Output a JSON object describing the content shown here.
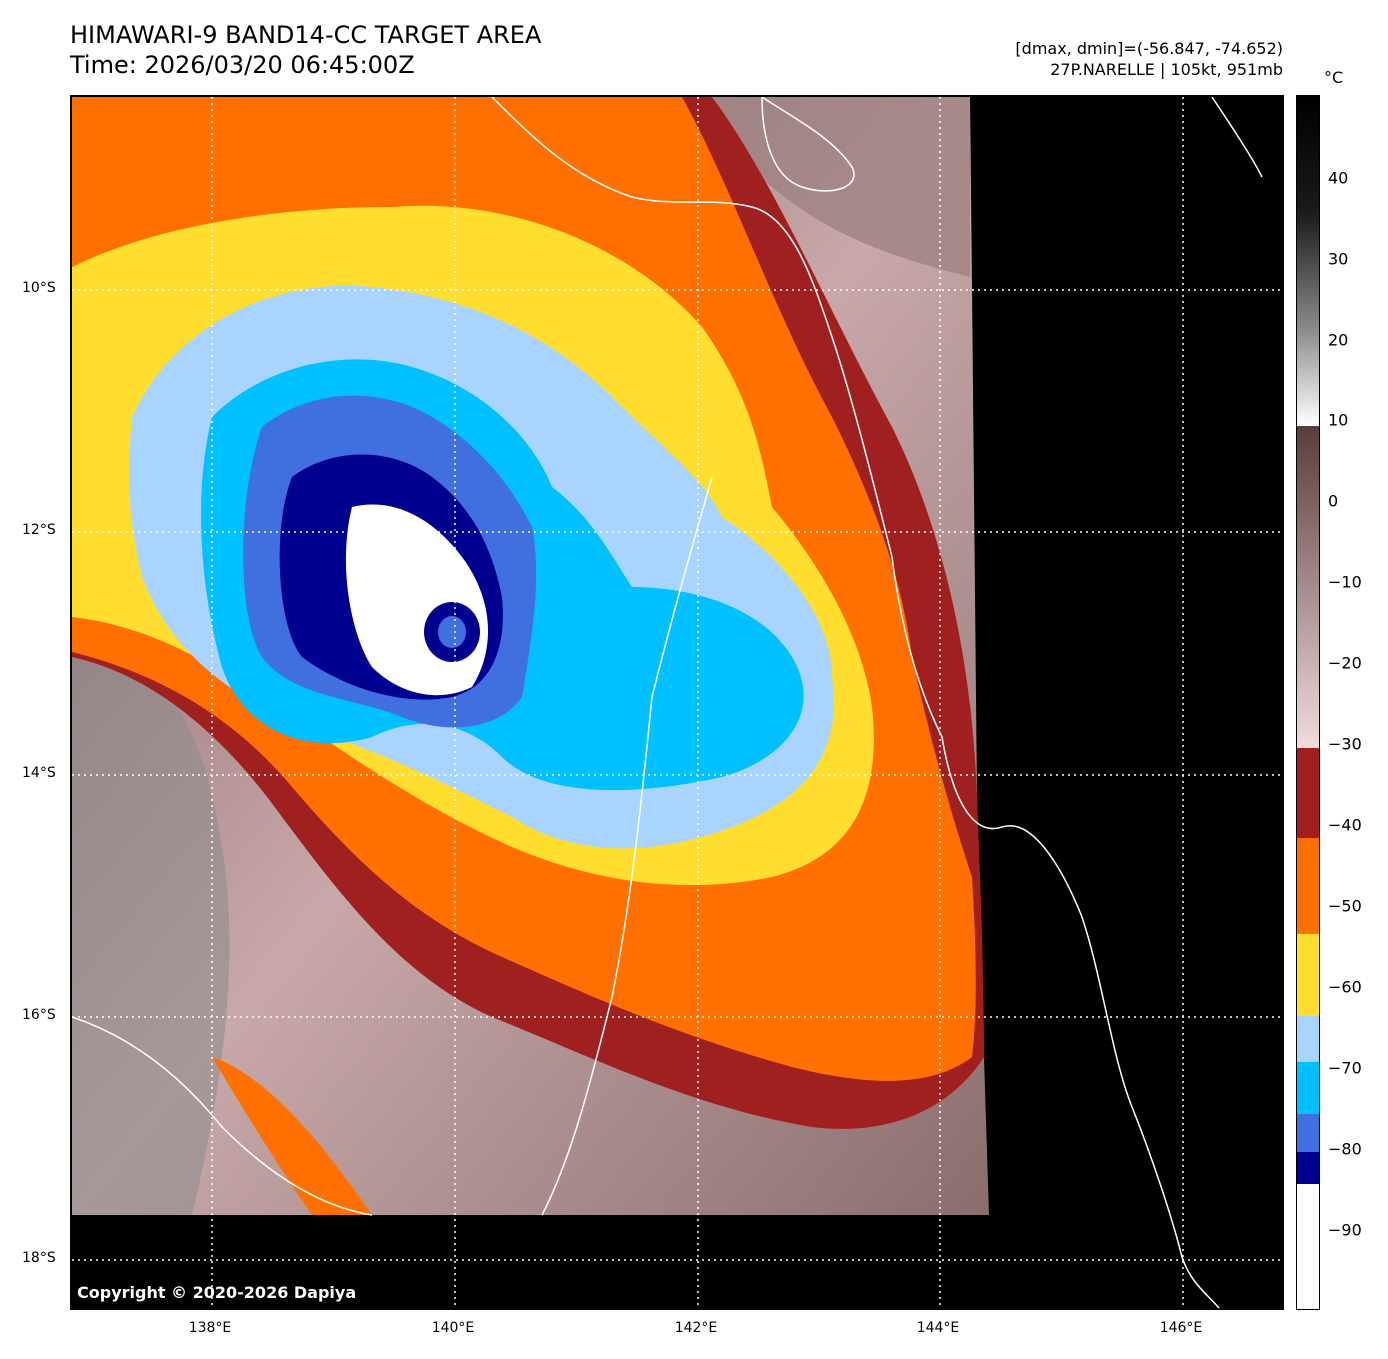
{
  "title": {
    "line1": "HIMAWARI-9 BAND14-CC TARGET AREA",
    "line2": "Time: 2026/03/20 06:45:00Z"
  },
  "meta": {
    "range": "[dmax, dmin]=(-56.847, -74.652)",
    "storm": "27P.NARELLE | 105kt, 951mb"
  },
  "copyright": "Copyright © 2020-2026 Dapiya",
  "lat_labels": [
    "10°S",
    "12°S",
    "14°S",
    "16°S",
    "18°S"
  ],
  "lon_labels": [
    "138°E",
    "140°E",
    "142°E",
    "144°E",
    "146°E"
  ],
  "colorbar": {
    "unit": "°C",
    "ticks": [
      "40",
      "30",
      "20",
      "10",
      "0",
      "−10",
      "−20",
      "−30",
      "−40",
      "−50",
      "−60",
      "−70",
      "−80",
      "−90"
    ],
    "colors": {
      "grey_scale": "#5a3c3c",
      "red": "#a02020",
      "orange": "#ff7000",
      "yellow": "#ffde30",
      "light_blue": "#a8d4ff",
      "cyan": "#00c0ff",
      "blue": "#4070e0",
      "navy": "#000090",
      "white": "#ffffff"
    }
  }
}
